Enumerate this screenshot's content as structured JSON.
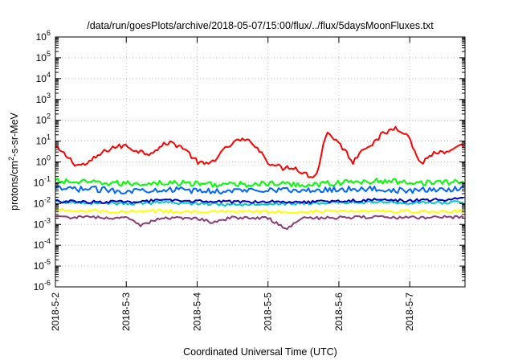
{
  "chart_data": {
    "type": "line",
    "title": "/data/run/goesPlots/archive/2018-05-07/15:00/flux/../flux/5daysMoonFluxes.txt",
    "xlabel": "Coordinated Universal Time (UTC)",
    "ylabel": "protons/cm2-s-sr-MeV",
    "y_scale": "log",
    "ylim_exp": [
      -6,
      6
    ],
    "xlim_days": [
      0,
      5.78
    ],
    "x_ticks": [
      "2018-5-2",
      "2018-5-3",
      "2018-5-4",
      "2018-5-5",
      "2018-5-6",
      "2018-5-7"
    ],
    "grid": true,
    "series": [
      {
        "color": "#ff0000",
        "x": [
          0,
          0.15,
          0.3,
          0.45,
          0.6,
          0.8,
          1.0,
          1.1,
          1.3,
          1.45,
          1.6,
          1.8,
          2.0,
          2.15,
          2.3,
          2.45,
          2.6,
          2.8,
          3.0,
          3.2,
          3.35,
          3.5,
          3.6,
          3.7,
          3.8,
          3.85,
          3.9,
          4.0,
          4.1,
          4.2,
          4.35,
          4.5,
          4.6,
          4.7,
          4.8,
          4.95,
          5.05,
          5.15,
          5.25,
          5.35,
          5.5,
          5.65,
          5.78
        ],
        "values": [
          5,
          2,
          0.7,
          0.8,
          2,
          5,
          6,
          4,
          2.5,
          4.5,
          9,
          5,
          1,
          0.7,
          2,
          6,
          12,
          8,
          1,
          0.5,
          0.6,
          0.3,
          0.2,
          0.3,
          15,
          25,
          18,
          8,
          3,
          1,
          5,
          8,
          20,
          30,
          45,
          25,
          5,
          0.8,
          1.5,
          3,
          2.5,
          4,
          7
        ]
      },
      {
        "color": "#00ff00",
        "x": [
          0,
          0.5,
          1.0,
          1.5,
          2.0,
          2.5,
          3.0,
          3.5,
          4.0,
          4.5,
          5.0,
          5.5,
          5.78
        ],
        "values": [
          0.12,
          0.1,
          0.09,
          0.1,
          0.09,
          0.08,
          0.09,
          0.08,
          0.1,
          0.12,
          0.11,
          0.1,
          0.12
        ]
      },
      {
        "color": "#0066ff",
        "x": [
          0,
          0.5,
          1.0,
          1.5,
          2.0,
          2.5,
          3.0,
          3.5,
          4.0,
          4.5,
          5.0,
          5.5,
          5.78
        ],
        "values": [
          0.05,
          0.05,
          0.04,
          0.05,
          0.04,
          0.04,
          0.05,
          0.04,
          0.05,
          0.05,
          0.04,
          0.05,
          0.05
        ]
      },
      {
        "color": "#00c8c8",
        "x": [
          0,
          0.5,
          1.0,
          1.5,
          2.0,
          2.5,
          3.0,
          3.5,
          4.0,
          4.5,
          5.0,
          5.5,
          5.78
        ],
        "values": [
          0.012,
          0.011,
          0.01,
          0.011,
          0.01,
          0.009,
          0.01,
          0.01,
          0.011,
          0.012,
          0.011,
          0.011,
          0.012
        ]
      },
      {
        "color": "#0000c0",
        "x": [
          0,
          0.5,
          1.0,
          1.5,
          2.0,
          2.5,
          3.0,
          3.5,
          4.0,
          4.5,
          5.0,
          5.5,
          5.78
        ],
        "values": [
          0.013,
          0.012,
          0.012,
          0.014,
          0.013,
          0.012,
          0.013,
          0.012,
          0.013,
          0.015,
          0.014,
          0.015,
          0.018
        ]
      },
      {
        "color": "#ffff00",
        "x": [
          0,
          0.5,
          1.0,
          1.5,
          2.0,
          2.5,
          3.0,
          3.5,
          4.0,
          4.5,
          5.0,
          5.5,
          5.78
        ],
        "values": [
          0.005,
          0.0045,
          0.004,
          0.0045,
          0.004,
          0.004,
          0.0042,
          0.004,
          0.0045,
          0.0045,
          0.0042,
          0.0042,
          0.0045
        ]
      },
      {
        "color": "#8b3a7a",
        "x": [
          0,
          0.5,
          1.0,
          1.2,
          1.5,
          2.0,
          2.2,
          2.5,
          3.0,
          3.25,
          3.5,
          4.0,
          4.5,
          5.0,
          5.5,
          5.78
        ],
        "values": [
          0.0022,
          0.0022,
          0.002,
          0.0009,
          0.0021,
          0.002,
          0.0013,
          0.0021,
          0.002,
          0.0006,
          0.002,
          0.0021,
          0.0022,
          0.0021,
          0.0022,
          0.0023
        ]
      }
    ]
  }
}
